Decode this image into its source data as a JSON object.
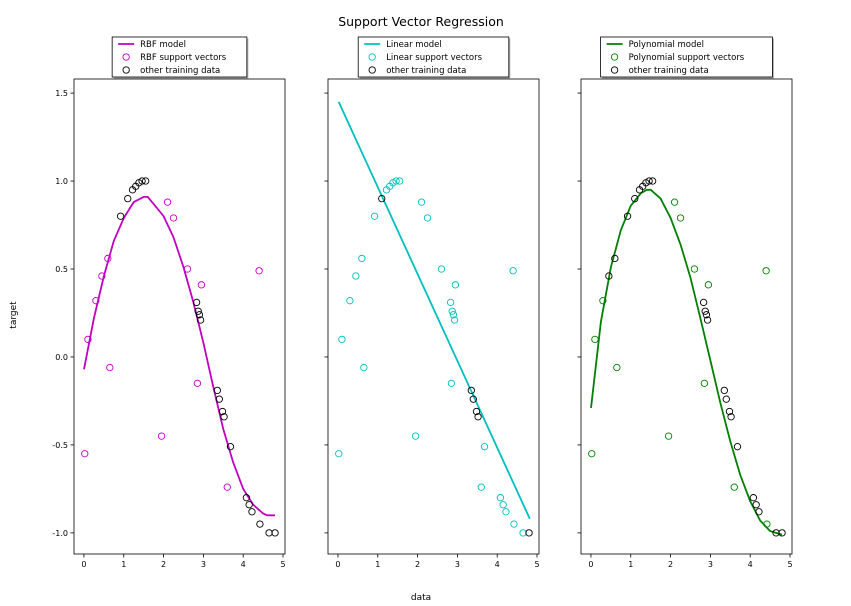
{
  "figure": {
    "title": "Support Vector Regression",
    "xlabel": "data",
    "ylabel": "target"
  },
  "chart_data": [
    {
      "type": "scatter",
      "title": "",
      "xlabel": "data",
      "ylabel": "target",
      "xlim": [
        -0.25,
        5.05
      ],
      "ylim": [
        -1.12,
        1.58
      ],
      "xticks": [
        "0",
        "1",
        "2",
        "3",
        "4",
        "5"
      ],
      "yticks": [
        "1.5",
        "1.0",
        "0.5",
        "0.0",
        "-0.5",
        "-1.0"
      ],
      "legend_position": "top",
      "model": {
        "name": "RBF model",
        "color": "#c000c0",
        "x": [
          0.0,
          0.25,
          0.5,
          0.75,
          1.0,
          1.25,
          1.5,
          1.6,
          1.75,
          2.0,
          2.25,
          2.5,
          2.75,
          3.0,
          3.25,
          3.5,
          3.75,
          4.0,
          4.25,
          4.5,
          4.6,
          4.8
        ],
        "y": [
          -0.07,
          0.22,
          0.46,
          0.66,
          0.79,
          0.88,
          0.91,
          0.91,
          0.87,
          0.8,
          0.68,
          0.51,
          0.31,
          0.08,
          -0.17,
          -0.41,
          -0.6,
          -0.75,
          -0.84,
          -0.89,
          -0.9,
          -0.9
        ]
      },
      "support_vectors": {
        "name": "RBF support vectors",
        "color": "#c000c0",
        "x": [
          0.02,
          0.1,
          0.3,
          0.45,
          0.6,
          0.65,
          1.95,
          2.1,
          2.25,
          2.6,
          2.85,
          2.95,
          3.6,
          4.4
        ],
        "y": [
          -0.55,
          0.1,
          0.32,
          0.46,
          0.56,
          -0.06,
          -0.45,
          0.88,
          0.79,
          0.5,
          -0.15,
          0.41,
          -0.74,
          0.49
        ]
      },
      "other_data": {
        "name": "other training data",
        "color": "#000000",
        "x": [
          0.92,
          1.1,
          1.22,
          1.3,
          1.38,
          1.46,
          1.55,
          2.83,
          2.87,
          2.9,
          2.93,
          3.35,
          3.4,
          3.48,
          3.52,
          3.68,
          4.08,
          4.15,
          4.22,
          4.42,
          4.65,
          4.8
        ],
        "y": [
          0.8,
          0.9,
          0.95,
          0.97,
          0.99,
          1.0,
          1.0,
          0.31,
          0.26,
          0.24,
          0.21,
          -0.19,
          -0.24,
          -0.31,
          -0.34,
          -0.51,
          -0.8,
          -0.84,
          -0.88,
          -0.95,
          -1.0,
          -1.0
        ]
      }
    },
    {
      "type": "scatter",
      "title": "",
      "xlabel": "data",
      "ylabel": "",
      "xlim": [
        -0.25,
        5.05
      ],
      "ylim": [
        -1.12,
        1.58
      ],
      "xticks": [
        "0",
        "1",
        "2",
        "3",
        "4",
        "5"
      ],
      "yticks": [],
      "legend_position": "top",
      "model": {
        "name": "Linear model",
        "color": "#00bfbf",
        "x": [
          0.02,
          4.82
        ],
        "y": [
          1.45,
          -0.92
        ]
      },
      "support_vectors": {
        "name": "Linear support vectors",
        "color": "#00bfbf",
        "x": [
          0.02,
          0.1,
          0.3,
          0.45,
          0.6,
          0.65,
          0.92,
          1.22,
          1.3,
          1.38,
          1.46,
          1.55,
          1.95,
          2.1,
          2.25,
          2.6,
          2.83,
          2.85,
          2.87,
          2.9,
          2.93,
          2.95,
          3.6,
          3.68,
          4.08,
          4.15,
          4.22,
          4.4,
          4.42,
          4.65
        ],
        "y": [
          -0.55,
          0.1,
          0.32,
          0.46,
          0.56,
          -0.06,
          0.8,
          0.95,
          0.97,
          0.99,
          1.0,
          1.0,
          -0.45,
          0.88,
          0.79,
          0.5,
          0.31,
          -0.15,
          0.26,
          0.24,
          0.21,
          0.41,
          -0.74,
          -0.51,
          -0.8,
          -0.84,
          -0.88,
          0.49,
          -0.95,
          -1.0
        ]
      },
      "other_data": {
        "name": "other training data",
        "color": "#000000",
        "x": [
          1.1,
          3.35,
          3.4,
          3.48,
          3.52,
          4.8
        ],
        "y": [
          0.9,
          -0.19,
          -0.24,
          -0.31,
          -0.34,
          -1.0
        ]
      }
    },
    {
      "type": "scatter",
      "title": "",
      "xlabel": "data",
      "ylabel": "",
      "xlim": [
        -0.25,
        5.05
      ],
      "ylim": [
        -1.12,
        1.58
      ],
      "xticks": [
        "0",
        "1",
        "2",
        "3",
        "4",
        "5"
      ],
      "yticks": [],
      "legend_position": "top",
      "model": {
        "name": "Polynomial model",
        "color": "#008000",
        "x": [
          0.0,
          0.25,
          0.5,
          0.75,
          1.0,
          1.25,
          1.4,
          1.5,
          1.75,
          2.0,
          2.25,
          2.5,
          2.75,
          3.0,
          3.25,
          3.5,
          3.75,
          4.0,
          4.25,
          4.5,
          4.8
        ],
        "y": [
          -0.29,
          0.2,
          0.51,
          0.72,
          0.86,
          0.93,
          0.95,
          0.95,
          0.9,
          0.79,
          0.64,
          0.45,
          0.22,
          -0.02,
          -0.26,
          -0.48,
          -0.67,
          -0.82,
          -0.93,
          -0.99,
          -1.01
        ]
      },
      "support_vectors": {
        "name": "Polynomial support vectors",
        "color": "#008000",
        "x": [
          0.02,
          0.1,
          0.3,
          0.65,
          1.95,
          2.1,
          2.25,
          2.6,
          2.85,
          2.95,
          3.6,
          4.4,
          4.42
        ],
        "y": [
          -0.55,
          0.1,
          0.32,
          -0.06,
          -0.45,
          0.88,
          0.79,
          0.5,
          -0.15,
          0.41,
          -0.74,
          0.49,
          -0.95
        ]
      },
      "other_data": {
        "name": "other training data",
        "color": "#000000",
        "x": [
          0.45,
          0.6,
          0.92,
          1.1,
          1.22,
          1.3,
          1.38,
          1.46,
          1.55,
          2.83,
          2.87,
          2.9,
          2.93,
          3.35,
          3.4,
          3.48,
          3.52,
          3.68,
          4.08,
          4.15,
          4.22,
          4.65,
          4.8
        ],
        "y": [
          0.46,
          0.56,
          0.8,
          0.9,
          0.95,
          0.97,
          0.99,
          1.0,
          1.0,
          0.31,
          0.26,
          0.24,
          0.21,
          -0.19,
          -0.24,
          -0.31,
          -0.34,
          -0.51,
          -0.8,
          -0.84,
          -0.88,
          -1.0,
          -1.0
        ]
      }
    }
  ]
}
